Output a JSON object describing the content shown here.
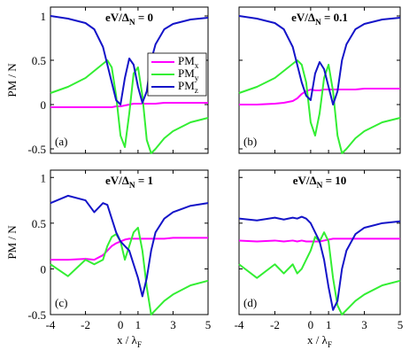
{
  "chart_data": [
    {
      "type": "line",
      "title": [
        "eV/Δ",
        "N",
        " = 0"
      ],
      "label": "(a)",
      "ylabel": "PM / N",
      "x": [
        -4,
        -3,
        -2,
        -1.5,
        -1,
        -0.75,
        -0.5,
        -0.25,
        0,
        0.25,
        0.5,
        0.75,
        1,
        1.25,
        1.5,
        1.75,
        2,
        2.5,
        3,
        4,
        5
      ],
      "xlim": [
        -4,
        5
      ],
      "xticks": [
        -4,
        -2,
        0,
        1,
        3,
        5
      ],
      "xtick_labels": false,
      "ylim": [
        -0.55,
        1.1
      ],
      "yticks": [
        -0.5,
        0,
        0.5,
        1
      ],
      "ytick_labels": true,
      "legend": "upper right",
      "series": [
        {
          "name": [
            "PM",
            "x"
          ],
          "color": "#ff00ff",
          "values": [
            -0.03,
            -0.03,
            -0.03,
            -0.03,
            -0.03,
            -0.03,
            -0.03,
            -0.02,
            -0.02,
            -0.01,
            0,
            0.01,
            0.01,
            0.01,
            0.01,
            0.01,
            0.01,
            0.02,
            0.02,
            0.02,
            0.02
          ]
        },
        {
          "name": [
            "PM",
            "y"
          ],
          "color": "#33ee33",
          "values": [
            0.13,
            0.2,
            0.3,
            0.38,
            0.46,
            0.5,
            0.42,
            0.1,
            -0.35,
            -0.48,
            -0.1,
            0.35,
            0.42,
            0.1,
            -0.4,
            -0.55,
            -0.5,
            -0.38,
            -0.3,
            -0.2,
            -0.15
          ]
        },
        {
          "name": [
            "PM",
            "z"
          ],
          "color": "#1414c8",
          "values": [
            1,
            0.97,
            0.92,
            0.85,
            0.65,
            0.45,
            0.25,
            0.05,
            0,
            0.3,
            0.52,
            0.45,
            0.2,
            0.02,
            0.15,
            0.5,
            0.68,
            0.85,
            0.91,
            0.96,
            0.98
          ]
        }
      ]
    },
    {
      "type": "line",
      "title": [
        "eV/Δ",
        "N",
        " = 0.1"
      ],
      "label": "(b)",
      "x": [
        -4,
        -3,
        -2,
        -1.5,
        -1,
        -0.75,
        -0.5,
        -0.25,
        0,
        0.25,
        0.5,
        0.75,
        1,
        1.25,
        1.5,
        1.75,
        2,
        2.5,
        3,
        4,
        5
      ],
      "xlim": [
        -4,
        5
      ],
      "xticks": [
        -4,
        -2,
        0,
        1,
        3,
        5
      ],
      "xtick_labels": false,
      "ylim": [
        -0.55,
        1.1
      ],
      "yticks": [
        -0.5,
        0,
        0.5,
        1
      ],
      "ytick_labels": false,
      "series": [
        {
          "color": "#ff00ff",
          "values": [
            0,
            0,
            0.01,
            0.02,
            0.04,
            0.07,
            0.12,
            0.15,
            0.17,
            0.16,
            0.16,
            0.17,
            0.17,
            0.17,
            0.17,
            0.17,
            0.17,
            0.17,
            0.18,
            0.18,
            0.18
          ]
        },
        {
          "color": "#33ee33",
          "values": [
            0.13,
            0.2,
            0.3,
            0.38,
            0.46,
            0.5,
            0.45,
            0.25,
            -0.2,
            -0.35,
            -0.1,
            0.3,
            0.45,
            0.15,
            -0.35,
            -0.55,
            -0.5,
            -0.38,
            -0.3,
            -0.2,
            -0.15
          ]
        },
        {
          "color": "#1414c8",
          "values": [
            1,
            0.97,
            0.92,
            0.85,
            0.65,
            0.45,
            0.25,
            0.1,
            0.05,
            0.35,
            0.48,
            0.4,
            0.2,
            0,
            0.15,
            0.5,
            0.68,
            0.85,
            0.91,
            0.96,
            0.98
          ]
        }
      ]
    },
    {
      "type": "line",
      "title": [
        "eV/Δ",
        "N",
        " = 1"
      ],
      "label": "(c)",
      "ylabel": "PM / N",
      "xlabel": [
        "x / λ",
        "F"
      ],
      "x": [
        -4,
        -3,
        -2,
        -1.5,
        -1,
        -0.75,
        -0.5,
        -0.25,
        0,
        0.25,
        0.5,
        0.75,
        1,
        1.25,
        1.5,
        1.75,
        2,
        2.5,
        3,
        4,
        5
      ],
      "xlim": [
        -4,
        5
      ],
      "xticks": [
        -4,
        -2,
        0,
        1,
        3,
        5
      ],
      "xtick_labels": true,
      "ylim": [
        -0.5,
        1.08
      ],
      "yticks": [
        -0.5,
        0,
        0.5,
        1
      ],
      "ytick_labels": true,
      "series": [
        {
          "color": "#ff00ff",
          "values": [
            0.1,
            0.1,
            0.11,
            0.1,
            0.15,
            0.2,
            0.25,
            0.28,
            0.3,
            0.32,
            0.33,
            0.33,
            0.33,
            0.33,
            0.33,
            0.33,
            0.33,
            0.33,
            0.34,
            0.34,
            0.34
          ]
        },
        {
          "color": "#33ee33",
          "values": [
            0.05,
            -0.08,
            0.1,
            0.05,
            0.1,
            0.25,
            0.35,
            0.38,
            0.3,
            0.1,
            0.25,
            0.4,
            0.45,
            0.2,
            -0.2,
            -0.5,
            -0.45,
            -0.35,
            -0.28,
            -0.18,
            -0.13
          ]
        },
        {
          "color": "#1414c8",
          "values": [
            0.72,
            0.8,
            0.75,
            0.62,
            0.72,
            0.7,
            0.55,
            0.4,
            0.3,
            0.25,
            0.2,
            0.05,
            -0.1,
            -0.3,
            -0.1,
            0.2,
            0.4,
            0.55,
            0.62,
            0.69,
            0.72
          ]
        }
      ]
    },
    {
      "type": "line",
      "title": [
        "eV/Δ",
        "N",
        " = 10"
      ],
      "label": "(d)",
      "xlabel": [
        "x / λ",
        "F"
      ],
      "x": [
        -4,
        -3,
        -2,
        -1.5,
        -1,
        -0.75,
        -0.5,
        -0.25,
        0,
        0.25,
        0.5,
        0.75,
        1,
        1.25,
        1.5,
        1.75,
        2,
        2.5,
        3,
        4,
        5
      ],
      "xlim": [
        -4,
        5
      ],
      "xticks": [
        -4,
        -2,
        0,
        1,
        3,
        5
      ],
      "xtick_labels": true,
      "ylim": [
        -0.5,
        1.08
      ],
      "yticks": [
        -0.5,
        0,
        0.5,
        1
      ],
      "ytick_labels": false,
      "series": [
        {
          "color": "#ff00ff",
          "values": [
            0.31,
            0.3,
            0.31,
            0.3,
            0.31,
            0.3,
            0.31,
            0.3,
            0.3,
            0.3,
            0.3,
            0.31,
            0.32,
            0.33,
            0.33,
            0.33,
            0.33,
            0.33,
            0.33,
            0.33,
            0.33
          ]
        },
        {
          "color": "#33ee33",
          "values": [
            0.05,
            -0.1,
            0.05,
            -0.05,
            0.05,
            -0.05,
            0,
            0.1,
            0.2,
            0.35,
            0.3,
            0.4,
            0.3,
            -0.1,
            -0.4,
            -0.5,
            -0.45,
            -0.35,
            -0.28,
            -0.18,
            -0.13
          ]
        },
        {
          "color": "#1414c8",
          "values": [
            0.55,
            0.53,
            0.56,
            0.54,
            0.56,
            0.55,
            0.57,
            0.55,
            0.5,
            0.4,
            0.3,
            0.1,
            -0.2,
            -0.45,
            -0.35,
            0,
            0.2,
            0.38,
            0.45,
            0.5,
            0.52
          ]
        }
      ]
    }
  ]
}
